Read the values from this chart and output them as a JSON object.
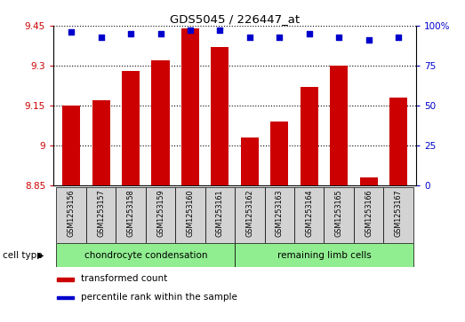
{
  "title": "GDS5045 / 226447_at",
  "samples": [
    "GSM1253156",
    "GSM1253157",
    "GSM1253158",
    "GSM1253159",
    "GSM1253160",
    "GSM1253161",
    "GSM1253162",
    "GSM1253163",
    "GSM1253164",
    "GSM1253165",
    "GSM1253166",
    "GSM1253167"
  ],
  "transformed_count": [
    9.15,
    9.17,
    9.28,
    9.32,
    9.44,
    9.37,
    9.03,
    9.09,
    9.22,
    9.3,
    8.88,
    9.18
  ],
  "percentile_rank": [
    96,
    93,
    95,
    95,
    97,
    97,
    93,
    93,
    95,
    93,
    91,
    93
  ],
  "ylim_left": [
    8.85,
    9.45
  ],
  "ylim_right": [
    0,
    100
  ],
  "yticks_left": [
    8.85,
    9.0,
    9.15,
    9.3,
    9.45
  ],
  "yticks_right": [
    0,
    25,
    50,
    75,
    100
  ],
  "ytick_labels_left": [
    "8.85",
    "9",
    "9.15",
    "9.3",
    "9.45"
  ],
  "ytick_labels_right": [
    "0",
    "25",
    "50",
    "75",
    "100%"
  ],
  "groups": [
    {
      "label": "chondrocyte condensation",
      "indices": [
        0,
        1,
        2,
        3,
        4,
        5
      ],
      "color": "#90ee90"
    },
    {
      "label": "remaining limb cells",
      "indices": [
        6,
        7,
        8,
        9,
        10,
        11
      ],
      "color": "#90ee90"
    }
  ],
  "bar_color": "#cc0000",
  "dot_color": "#0000cc",
  "bar_bottom": 8.85,
  "grid_color": "#000000",
  "bg_color": "#d3d3d3",
  "cell_type_label": "cell type",
  "legend": [
    {
      "label": "transformed count",
      "color": "#cc0000"
    },
    {
      "label": "percentile rank within the sample",
      "color": "#0000cc"
    }
  ]
}
